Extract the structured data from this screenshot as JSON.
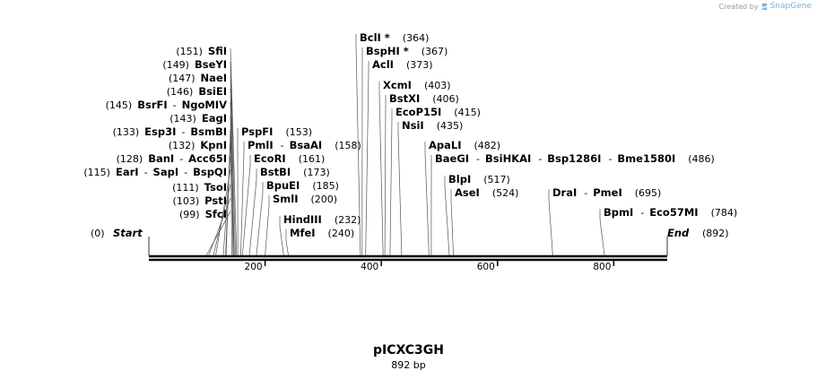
{
  "credit": {
    "prefix": "Created by",
    "brand": "SnapGene"
  },
  "map": {
    "name": "pICXC3GH",
    "length_label": "892 bp",
    "length_bp": 892,
    "start_label": "Start",
    "start_pos": "(0)",
    "end_label": "End",
    "end_pos": "(892)",
    "ticks": [
      {
        "bp": 200,
        "label": "200"
      },
      {
        "bp": 400,
        "label": "400"
      },
      {
        "bp": 600,
        "label": "600"
      },
      {
        "bp": 800,
        "label": "800"
      }
    ],
    "sites": [
      {
        "bp": 99,
        "pos": "(99)",
        "names": [
          "SfcI"
        ],
        "side": "left"
      },
      {
        "bp": 103,
        "pos": "(103)",
        "names": [
          "PstI"
        ],
        "side": "left"
      },
      {
        "bp": 111,
        "pos": "(111)",
        "names": [
          "TsoI"
        ],
        "side": "left"
      },
      {
        "bp": 115,
        "pos": "(115)",
        "names": [
          "EarI",
          "SapI",
          "BspQI"
        ],
        "side": "left"
      },
      {
        "bp": 128,
        "pos": "(128)",
        "names": [
          "BanI",
          "Acc65I"
        ],
        "side": "left"
      },
      {
        "bp": 132,
        "pos": "(132)",
        "names": [
          "KpnI"
        ],
        "side": "left"
      },
      {
        "bp": 133,
        "pos": "(133)",
        "names": [
          "Esp3I",
          "BsmBI"
        ],
        "side": "left"
      },
      {
        "bp": 143,
        "pos": "(143)",
        "names": [
          "EagI"
        ],
        "side": "left"
      },
      {
        "bp": 145,
        "pos": "(145)",
        "names": [
          "BsrFI",
          "NgoMIV"
        ],
        "side": "left"
      },
      {
        "bp": 146,
        "pos": "(146)",
        "names": [
          "BsiEI"
        ],
        "side": "left"
      },
      {
        "bp": 147,
        "pos": "(147)",
        "names": [
          "NaeI"
        ],
        "side": "left"
      },
      {
        "bp": 149,
        "pos": "(149)",
        "names": [
          "BseYI"
        ],
        "side": "left"
      },
      {
        "bp": 151,
        "pos": "(151)",
        "names": [
          "SfiI"
        ],
        "side": "left"
      },
      {
        "bp": 153,
        "pos": "(153)",
        "names": [
          "PspFI"
        ],
        "side": "right"
      },
      {
        "bp": 158,
        "pos": "(158)",
        "names": [
          "PmlI",
          "BsaAI"
        ],
        "side": "right"
      },
      {
        "bp": 161,
        "pos": "(161)",
        "names": [
          "EcoRI"
        ],
        "side": "right"
      },
      {
        "bp": 173,
        "pos": "(173)",
        "names": [
          "BstBI"
        ],
        "side": "right"
      },
      {
        "bp": 185,
        "pos": "(185)",
        "names": [
          "BpuEI"
        ],
        "side": "right"
      },
      {
        "bp": 200,
        "pos": "(200)",
        "names": [
          "SmlI"
        ],
        "side": "right"
      },
      {
        "bp": 232,
        "pos": "(232)",
        "names": [
          "HindIII"
        ],
        "side": "right"
      },
      {
        "bp": 240,
        "pos": "(240)",
        "names": [
          "MfeI"
        ],
        "side": "right"
      },
      {
        "bp": 364,
        "pos": "(364)",
        "names": [
          "BclI *"
        ],
        "side": "right"
      },
      {
        "bp": 367,
        "pos": "(367)",
        "names": [
          "BspHI *"
        ],
        "side": "right"
      },
      {
        "bp": 373,
        "pos": "(373)",
        "names": [
          "AclI"
        ],
        "side": "right"
      },
      {
        "bp": 403,
        "pos": "(403)",
        "names": [
          "XcmI"
        ],
        "side": "right"
      },
      {
        "bp": 406,
        "pos": "(406)",
        "names": [
          "BstXI"
        ],
        "side": "right"
      },
      {
        "bp": 415,
        "pos": "(415)",
        "names": [
          "EcoP15I"
        ],
        "side": "right"
      },
      {
        "bp": 435,
        "pos": "(435)",
        "names": [
          "NsiI"
        ],
        "side": "right"
      },
      {
        "bp": 482,
        "pos": "(482)",
        "names": [
          "ApaLI"
        ],
        "side": "right"
      },
      {
        "bp": 486,
        "pos": "(486)",
        "names": [
          "BaeGI",
          "BsiHKAI",
          "Bsp1286I",
          "Bme1580I"
        ],
        "side": "right"
      },
      {
        "bp": 517,
        "pos": "(517)",
        "names": [
          "BlpI"
        ],
        "side": "right"
      },
      {
        "bp": 524,
        "pos": "(524)",
        "names": [
          "AseI"
        ],
        "side": "right"
      },
      {
        "bp": 695,
        "pos": "(695)",
        "names": [
          "DraI",
          "PmeI"
        ],
        "side": "right"
      },
      {
        "bp": 784,
        "pos": "(784)",
        "names": [
          "BpmI",
          "Eco57MI"
        ],
        "side": "right"
      }
    ]
  }
}
